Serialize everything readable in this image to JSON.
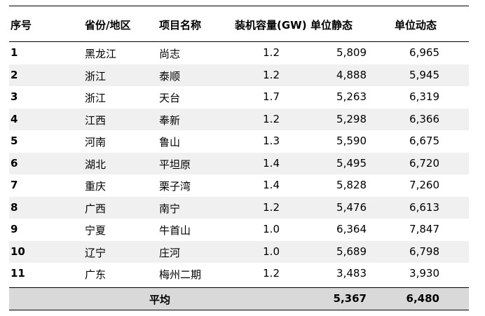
{
  "headers": {
    "no": "序号",
    "province": "省份/地区",
    "project": "项目名称",
    "capacity": "装机容量(GW)",
    "static_cost": "单位静态",
    "dynamic_cost": "单位动态"
  },
  "rows": [
    {
      "no": "1",
      "province": "黑龙江",
      "project": "尚志",
      "capacity": "1.2",
      "static_cost": "5,809",
      "dynamic_cost": "6,965"
    },
    {
      "no": "2",
      "province": "浙江",
      "project": "泰顺",
      "capacity": "1.2",
      "static_cost": "4,888",
      "dynamic_cost": "5,945"
    },
    {
      "no": "3",
      "province": "浙江",
      "project": "天台",
      "capacity": "1.7",
      "static_cost": "5,263",
      "dynamic_cost": "6,319"
    },
    {
      "no": "4",
      "province": "江西",
      "project": "奉新",
      "capacity": "1.2",
      "static_cost": "5,298",
      "dynamic_cost": "6,366"
    },
    {
      "no": "5",
      "province": "河南",
      "project": "鲁山",
      "capacity": "1.3",
      "static_cost": "5,590",
      "dynamic_cost": "6,675"
    },
    {
      "no": "6",
      "province": "湖北",
      "project": "平坦原",
      "capacity": "1.4",
      "static_cost": "5,495",
      "dynamic_cost": "6,720"
    },
    {
      "no": "7",
      "province": "重庆",
      "project": "栗子湾",
      "capacity": "1.4",
      "static_cost": "5,828",
      "dynamic_cost": "7,260"
    },
    {
      "no": "8",
      "province": "广西",
      "project": "南宁",
      "capacity": "1.2",
      "static_cost": "5,476",
      "dynamic_cost": "6,613"
    },
    {
      "no": "9",
      "province": "宁夏",
      "project": "牛首山",
      "capacity": "1.0",
      "static_cost": "6,364",
      "dynamic_cost": "7,847"
    },
    {
      "no": "10",
      "province": "辽宁",
      "project": "庄河",
      "capacity": "1.0",
      "static_cost": "5,689",
      "dynamic_cost": "6,798"
    },
    {
      "no": "11",
      "province": "广东",
      "project": "梅州二期",
      "capacity": "1.2",
      "static_cost": "3,483",
      "dynamic_cost": "3,930"
    }
  ],
  "average": {
    "label": "平均",
    "static_cost": "5,367",
    "dynamic_cost": "6,480"
  }
}
